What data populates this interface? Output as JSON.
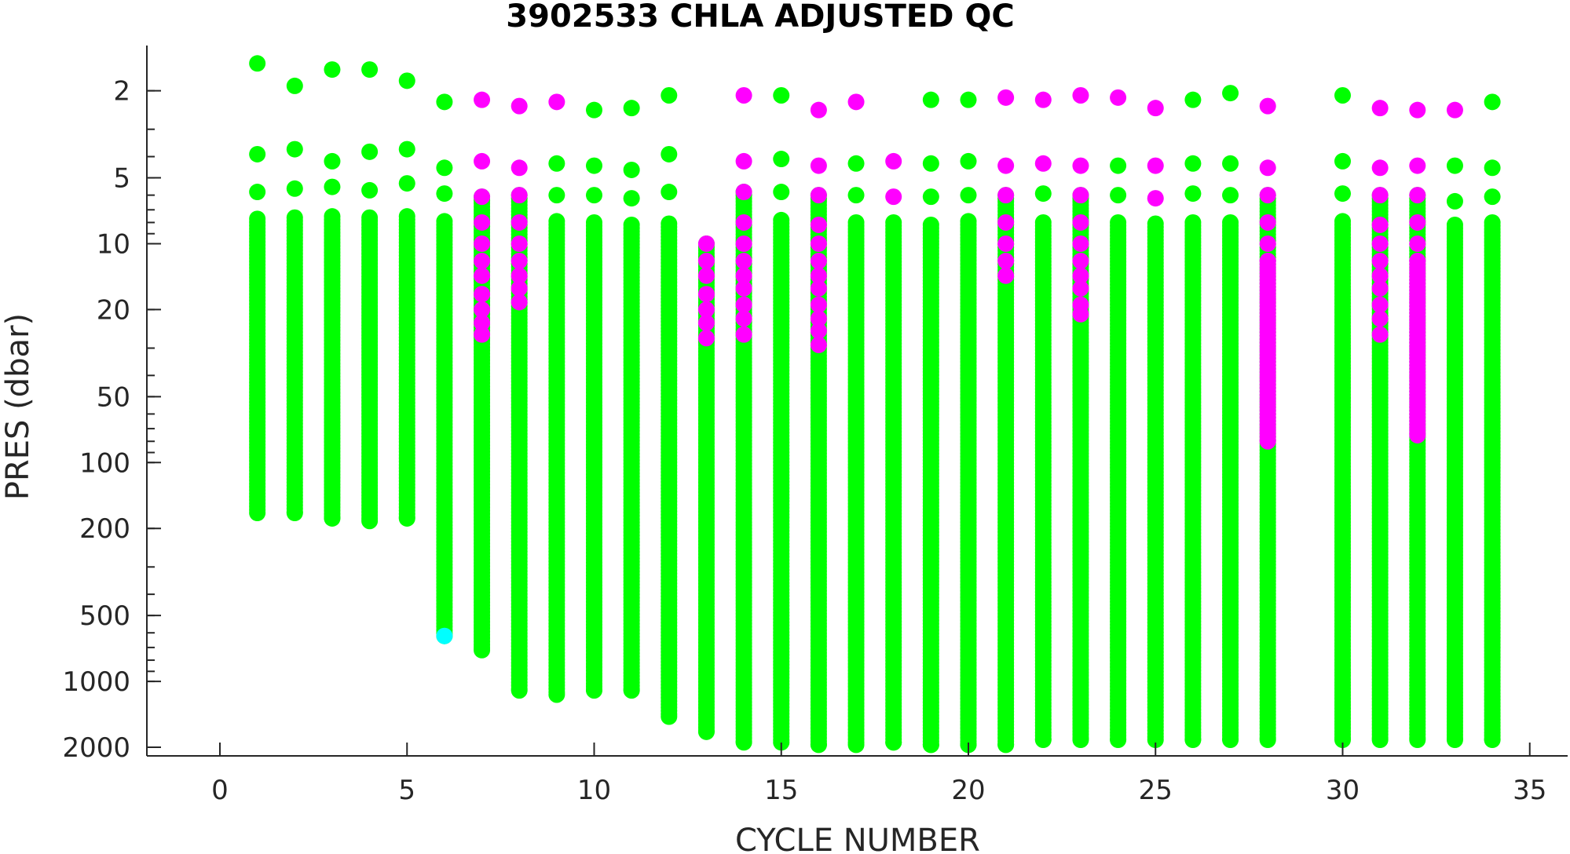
{
  "chart_data": {
    "type": "scatter",
    "title": "3902533  CHLA ADJUSTED QC",
    "xlabel": "CYCLE NUMBER",
    "ylabel": "PRES (dbar)",
    "xlim": [
      -2,
      36
    ],
    "ylim": [
      2700,
      1.2
    ],
    "yscale": "log",
    "y_reversed": true,
    "grid": false,
    "xticks": [
      0,
      5,
      10,
      15,
      20,
      25,
      30,
      35
    ],
    "xtick_labels": [
      "0",
      "5",
      "10",
      "15",
      "20",
      "25",
      "30",
      "35"
    ],
    "yticks": [
      2,
      5,
      10,
      20,
      50,
      100,
      200,
      500,
      1000,
      2000
    ],
    "ytick_labels": [
      "2",
      "5",
      "10",
      "20",
      "50",
      "100",
      "200",
      "500",
      "1000",
      "2000"
    ],
    "qc_colors": {
      "1": "#00ff00",
      "3": "#ff00ff",
      "4": "#00ffff"
    },
    "profiles": [
      {
        "cycle": 1,
        "top": [
          1.5,
          3.9,
          5.8
        ],
        "mid_start": 7.7,
        "max": 170,
        "bad_top": [],
        "bad_bottom": null,
        "bottom_flag": null
      },
      {
        "cycle": 2,
        "top": [
          1.9,
          3.7,
          5.6
        ],
        "mid_start": 7.6,
        "max": 170,
        "bad_top": [],
        "bad_bottom": null,
        "bottom_flag": null
      },
      {
        "cycle": 3,
        "top": [
          1.6,
          4.2,
          5.5
        ],
        "mid_start": 7.5,
        "max": 180,
        "bad_top": [],
        "bad_bottom": null,
        "bottom_flag": null
      },
      {
        "cycle": 4,
        "top": [
          1.6,
          3.8,
          5.7
        ],
        "mid_start": 7.6,
        "max": 185,
        "bad_top": [],
        "bad_bottom": null,
        "bottom_flag": null
      },
      {
        "cycle": 5,
        "top": [
          1.8,
          3.7,
          5.3
        ],
        "mid_start": 7.5,
        "max": 180,
        "bad_top": [],
        "bad_bottom": null,
        "bottom_flag": null
      },
      {
        "cycle": 6,
        "top": [
          2.25,
          4.5,
          5.9
        ],
        "mid_start": 7.9,
        "max": 620,
        "bad_top": [],
        "bad_bottom": null,
        "bottom_flag": "4"
      },
      {
        "cycle": 7,
        "top": [
          2.2,
          4.2
        ],
        "mid_start": 6.1,
        "max": 720,
        "bad_top": [
          2.2,
          4.2,
          6.1,
          8.0,
          10.0,
          12.0,
          14.0,
          17.0,
          20.0,
          23.0,
          26.0
        ],
        "bad_bottom": null,
        "bottom_flag": null
      },
      {
        "cycle": 8,
        "top": [
          2.35,
          4.5
        ],
        "mid_start": 6.0,
        "max": 1100,
        "bad_top": [
          2.35,
          4.5,
          6.0,
          8.0,
          10.0,
          12.0,
          14.0,
          16.0,
          18.5
        ],
        "bad_bottom": null,
        "bottom_flag": null
      },
      {
        "cycle": 9,
        "top": [
          2.25,
          4.3,
          6.0
        ],
        "mid_start": 7.9,
        "max": 1150,
        "bad_top": [
          2.25
        ],
        "bad_bottom": null,
        "bottom_flag": null
      },
      {
        "cycle": 10,
        "top": [
          2.45,
          4.4,
          6.0
        ],
        "mid_start": 8.0,
        "max": 1100,
        "bad_top": [],
        "bad_bottom": null,
        "bottom_flag": null
      },
      {
        "cycle": 11,
        "top": [
          2.4,
          4.6,
          6.2
        ],
        "mid_start": 8.2,
        "max": 1100,
        "bad_top": [],
        "bad_bottom": null,
        "bottom_flag": null
      },
      {
        "cycle": 12,
        "top": [
          2.1,
          3.9,
          5.8
        ],
        "mid_start": 8.1,
        "max": 1450,
        "bad_top": [],
        "bad_bottom": null,
        "bottom_flag": null
      },
      {
        "cycle": 13,
        "top": [],
        "mid_start": 10.0,
        "max": 1700,
        "bad_top": [
          10.0,
          12.0,
          14.0,
          17.0,
          20.0,
          23.0,
          27.0
        ],
        "bad_bottom": null,
        "bottom_flag": null
      },
      {
        "cycle": 14,
        "top": [
          2.1,
          4.2
        ],
        "mid_start": 5.8,
        "max": 1900,
        "bad_top": [
          2.1,
          4.2,
          5.8,
          8.0,
          10.0,
          12.0,
          14.0,
          16.0,
          19.0,
          22.0,
          26.0
        ],
        "bad_bottom": null,
        "bottom_flag": null
      },
      {
        "cycle": 15,
        "top": [
          2.1,
          4.1,
          5.8
        ],
        "mid_start": 7.8,
        "max": 1900,
        "bad_top": [],
        "bad_bottom": null,
        "bottom_flag": null
      },
      {
        "cycle": 16,
        "top": [
          2.45,
          4.4
        ],
        "mid_start": 6.0,
        "max": 1950,
        "bad_top": [
          2.45,
          4.4,
          6.0,
          8.2,
          10.0,
          12.0,
          14.0,
          16.0,
          19.0,
          22.0,
          25.0,
          29.0
        ],
        "bad_bottom": null,
        "bottom_flag": null
      },
      {
        "cycle": 17,
        "top": [
          2.25,
          4.3,
          6.0
        ],
        "mid_start": 8.0,
        "max": 1950,
        "bad_top": [
          2.25
        ],
        "bad_bottom": null,
        "bottom_flag": null
      },
      {
        "cycle": 18,
        "top": [],
        "mid_start": 8.0,
        "max": 1900,
        "bad_top": [
          4.2,
          6.1
        ],
        "bad_bottom": null,
        "bottom_flag": null
      },
      {
        "cycle": 19,
        "top": [
          2.2,
          4.3,
          6.1
        ],
        "mid_start": 8.2,
        "max": 1950,
        "bad_top": [],
        "bad_bottom": null,
        "bottom_flag": null
      },
      {
        "cycle": 20,
        "top": [
          2.2,
          4.2,
          6.0
        ],
        "mid_start": 7.9,
        "max": 1950,
        "bad_top": [],
        "bad_bottom": null,
        "bottom_flag": null
      },
      {
        "cycle": 21,
        "top": [
          2.15,
          4.4
        ],
        "mid_start": 6.0,
        "max": 1950,
        "bad_top": [
          2.15,
          4.4,
          6.0,
          8.0,
          10.0,
          12.0,
          14.0
        ],
        "bad_bottom": null,
        "bottom_flag": null
      },
      {
        "cycle": 22,
        "top": [
          2.2,
          4.3,
          5.9
        ],
        "mid_start": 8.0,
        "max": 1850,
        "bad_top": [
          2.2,
          4.3
        ],
        "bad_bottom": null,
        "bottom_flag": null
      },
      {
        "cycle": 23,
        "top": [
          2.1,
          4.4
        ],
        "mid_start": 6.0,
        "max": 1850,
        "bad_top": [
          2.1,
          4.4,
          6.0,
          8.0,
          10.0,
          12.0,
          14.0,
          16.0,
          19.0,
          21.0
        ],
        "bad_bottom": null,
        "bottom_flag": null
      },
      {
        "cycle": 24,
        "top": [
          2.15,
          4.4,
          6.0
        ],
        "mid_start": 8.0,
        "max": 1850,
        "bad_top": [
          2.15
        ],
        "bad_bottom": null,
        "bottom_flag": null
      },
      {
        "cycle": 25,
        "top": [
          2.4,
          4.4,
          6.2
        ],
        "mid_start": 8.1,
        "max": 1850,
        "bad_top": [
          2.4,
          4.4,
          6.2
        ],
        "bad_bottom": null,
        "bottom_flag": null
      },
      {
        "cycle": 26,
        "top": [
          2.2,
          4.3,
          5.9
        ],
        "mid_start": 8.0,
        "max": 1850,
        "bad_top": [],
        "bad_bottom": null,
        "bottom_flag": null
      },
      {
        "cycle": 27,
        "top": [
          2.05,
          4.3,
          6.0
        ],
        "mid_start": 8.0,
        "max": 1850,
        "bad_top": [],
        "bad_bottom": null,
        "bottom_flag": null
      },
      {
        "cycle": 28,
        "top": [
          2.35,
          4.5
        ],
        "mid_start": 6.0,
        "max": 1850,
        "bad_top": [
          2.35,
          4.5,
          6.0,
          8.0,
          10.0,
          12.0
        ],
        "bad_bottom": [
          12.0,
          80.0
        ],
        "bottom_flag": null
      },
      {
        "cycle": 30,
        "top": [
          2.1,
          4.2,
          5.9
        ],
        "mid_start": 7.9,
        "max": 1850,
        "bad_top": [],
        "bad_bottom": null,
        "bottom_flag": null
      },
      {
        "cycle": 31,
        "top": [
          2.4,
          4.5
        ],
        "mid_start": 6.0,
        "max": 1850,
        "bad_top": [
          2.4,
          4.5,
          6.0,
          8.2,
          10.0,
          12.0,
          14.0,
          16.0,
          19.0,
          22.0,
          26.0
        ],
        "bad_bottom": null,
        "bottom_flag": null
      },
      {
        "cycle": 32,
        "top": [
          2.45,
          4.4
        ],
        "mid_start": 6.0,
        "max": 1850,
        "bad_top": [
          2.45,
          4.4,
          6.0,
          8.0,
          10.0,
          12.0
        ],
        "bad_bottom": [
          12.0,
          75.0
        ],
        "bottom_flag": null
      },
      {
        "cycle": 33,
        "top": [
          2.45,
          4.4,
          6.4
        ],
        "mid_start": 8.2,
        "max": 1850,
        "bad_top": [
          2.45
        ],
        "bad_bottom": null,
        "bottom_flag": null
      },
      {
        "cycle": 34,
        "top": [
          2.25,
          4.5,
          6.1
        ],
        "mid_start": 8.0,
        "max": 1850,
        "bad_top": [],
        "bad_bottom": null,
        "bottom_flag": null
      }
    ]
  }
}
